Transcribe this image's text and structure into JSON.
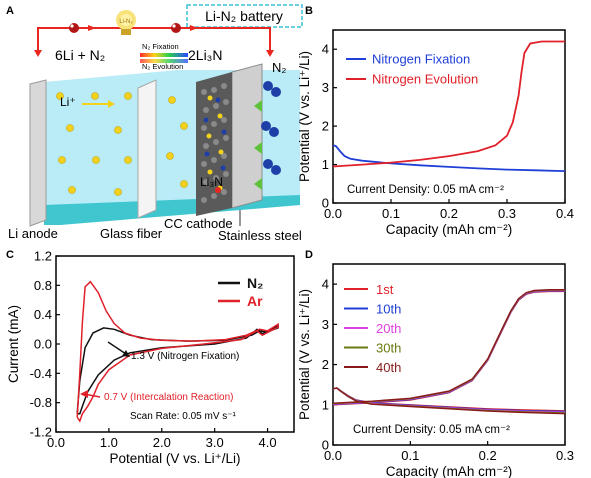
{
  "panels": {
    "A": {
      "letter": "A",
      "title": "Li-N₂ battery",
      "bulb_label": "Li-N₂",
      "equation_left": "6Li + N₂",
      "equation_right": "2Li₃N",
      "fixation_label": "N₂ Fixation",
      "evolution_label": "N₂ Evolution",
      "gas_label": "N₂",
      "li_ion_label": "Li⁺",
      "product_label": "Li₃N",
      "labels": [
        "Li anode",
        "Glass fiber",
        "CC cathode",
        "Stainless steel"
      ],
      "colors": {
        "electrolyte": "#b9ecf7",
        "bottom": "#3fc6cf",
        "dot": "#f2d21a",
        "n2": "#1f3fa8",
        "arrow_red": "#e8281e",
        "arrow_green": "#5cc23a"
      }
    },
    "B": {
      "letter": "B",
      "annotation": "Current Density: 0.05 mA cm⁻²"
    },
    "C": {
      "letter": "C",
      "annotations": [
        "1.3 V (Nitrogen Fixation)",
        "0.7 V (Intercalation Reaction)",
        "Scan Rate: 0.05 mV s⁻¹"
      ]
    },
    "D": {
      "letter": "D",
      "annotation": "Current Density: 0.05 mA cm⁻²"
    }
  },
  "chart_data": [
    {
      "panel": "B",
      "type": "line",
      "xlabel": "Capacity (mAh cm⁻²)",
      "ylabel": "Potential (V vs. Li⁺/Li)",
      "xlim": [
        0,
        0.4
      ],
      "ylim": [
        0,
        4.5
      ],
      "xticks": [
        "0.0",
        "0.1",
        "0.2",
        "0.3",
        "0.4"
      ],
      "yticks": [
        "0",
        "1",
        "2",
        "3",
        "4"
      ],
      "legend": "top",
      "series": [
        {
          "name": "Nitrogen Fixation",
          "color": "#1f3fd6",
          "x": [
            0,
            0.005,
            0.012,
            0.02,
            0.03,
            0.05,
            0.1,
            0.15,
            0.2,
            0.25,
            0.3,
            0.35,
            0.4
          ],
          "y": [
            1.5,
            1.48,
            1.35,
            1.22,
            1.15,
            1.1,
            1.03,
            0.98,
            0.94,
            0.9,
            0.87,
            0.85,
            0.83
          ]
        },
        {
          "name": "Nitrogen Evolution",
          "color": "#e0202a",
          "x": [
            0,
            0.05,
            0.1,
            0.15,
            0.2,
            0.25,
            0.28,
            0.3,
            0.31,
            0.32,
            0.325,
            0.33,
            0.34,
            0.36,
            0.4
          ],
          "y": [
            0.95,
            1.0,
            1.05,
            1.12,
            1.22,
            1.35,
            1.5,
            1.75,
            2.1,
            2.8,
            3.4,
            3.9,
            4.15,
            4.2,
            4.2
          ]
        }
      ]
    },
    {
      "panel": "C",
      "type": "line",
      "xlabel": "Potential (V vs. Li⁺/Li)",
      "ylabel": "Current (mA)",
      "xlim": [
        0,
        4.5
      ],
      "ylim": [
        -1.2,
        1.2
      ],
      "xticks": [
        "0.0",
        "1.0",
        "2.0",
        "3.0",
        "4.0"
      ],
      "yticks": [
        "-1.2",
        "-0.8",
        "-0.4",
        "0.0",
        "0.4",
        "0.8",
        "1.2"
      ],
      "legend": "top-right",
      "series": [
        {
          "name": "N₂",
          "color": "#111111",
          "x": [
            0.4,
            0.45,
            0.55,
            0.7,
            0.9,
            1.1,
            1.4,
            1.8,
            2.5,
            3.2,
            3.7,
            3.85,
            4.0,
            4.2,
            4.2,
            3.9,
            3.8,
            3.6,
            3.0,
            2.0,
            1.4,
            1.1,
            0.8,
            0.6,
            0.5,
            0.45,
            0.4
          ],
          "y": [
            -0.95,
            -0.5,
            -0.05,
            0.15,
            0.22,
            0.2,
            0.12,
            0.06,
            0.04,
            0.05,
            0.12,
            0.18,
            0.16,
            0.25,
            0.22,
            0.14,
            0.2,
            0.08,
            0.0,
            -0.05,
            -0.12,
            -0.22,
            -0.42,
            -0.65,
            -0.85,
            -0.95,
            -0.95
          ]
        },
        {
          "name": "Ar",
          "color": "#e0202a",
          "x": [
            0.4,
            0.45,
            0.5,
            0.55,
            0.65,
            0.8,
            0.95,
            1.1,
            1.3,
            1.6,
            2.0,
            2.6,
            3.2,
            3.6,
            3.85,
            4.0,
            4.2,
            4.2,
            3.9,
            3.8,
            3.5,
            2.8,
            2.0,
            1.4,
            1.0,
            0.8,
            0.7,
            0.6,
            0.5,
            0.45,
            0.4
          ],
          "y": [
            -1.0,
            -0.4,
            0.3,
            0.78,
            0.85,
            0.7,
            0.45,
            0.28,
            0.15,
            0.08,
            0.05,
            0.04,
            0.06,
            0.12,
            0.2,
            0.18,
            0.27,
            0.23,
            0.12,
            0.18,
            0.06,
            0.0,
            -0.06,
            -0.15,
            -0.35,
            -0.55,
            -0.72,
            -0.85,
            -0.95,
            -1.05,
            -1.0
          ]
        }
      ]
    },
    {
      "panel": "D",
      "type": "line",
      "xlabel": "Capacity (mAh cm⁻²)",
      "ylabel": "Potential (V vs. Li⁺/Li)",
      "xlim": [
        0,
        0.3
      ],
      "ylim": [
        0,
        4.5
      ],
      "xticks": [
        "0.0",
        "0.1",
        "0.2",
        "0.3"
      ],
      "yticks": [
        "0",
        "1",
        "2",
        "3",
        "4"
      ],
      "legend": "top-left",
      "series": [
        {
          "name": "1st",
          "color": "#e0202a",
          "offset": 0.0
        },
        {
          "name": "10th",
          "color": "#1f3fd6",
          "offset": 0.02
        },
        {
          "name": "20th",
          "color": "#e040e0",
          "offset": 0.04
        },
        {
          "name": "30th",
          "color": "#6b7a10",
          "offset": 0.06
        },
        {
          "name": "40th",
          "color": "#8a1a1a",
          "offset": 0.08
        }
      ],
      "discharge": {
        "x": [
          0,
          0.005,
          0.01,
          0.02,
          0.03,
          0.05,
          0.1,
          0.15,
          0.2,
          0.25,
          0.3
        ],
        "y": [
          1.4,
          1.42,
          1.35,
          1.22,
          1.12,
          1.05,
          1.0,
          0.95,
          0.9,
          0.87,
          0.85
        ]
      },
      "charge": {
        "x": [
          0,
          0.05,
          0.1,
          0.15,
          0.18,
          0.2,
          0.21,
          0.22,
          0.23,
          0.24,
          0.25,
          0.26,
          0.28,
          0.3
        ],
        "y": [
          1.0,
          1.05,
          1.12,
          1.3,
          1.6,
          2.1,
          2.5,
          2.9,
          3.3,
          3.6,
          3.75,
          3.8,
          3.82,
          3.82
        ]
      }
    }
  ]
}
